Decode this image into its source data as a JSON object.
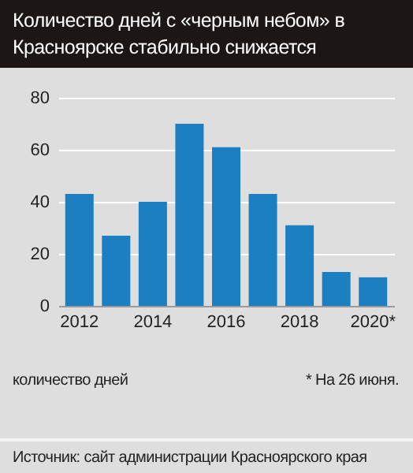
{
  "chart_data": {
    "type": "bar",
    "title": "Количество дней с «черным небом» в Красноярске стабильно снижается",
    "categories": [
      "2012",
      null,
      "2014",
      null,
      "2016",
      null,
      "2018",
      null,
      "2020*"
    ],
    "values": [
      43,
      27,
      40,
      70,
      61,
      43,
      31,
      13,
      11
    ],
    "color": "#1b7fc1",
    "ylim": [
      0,
      80
    ],
    "yticks": [
      0,
      20,
      40,
      60,
      80
    ],
    "grid": "y",
    "ylabel": "количество дней",
    "annotations": [
      "* На 26 июня.",
      "Источник: сайт администрации Красноярского края"
    ]
  }
}
